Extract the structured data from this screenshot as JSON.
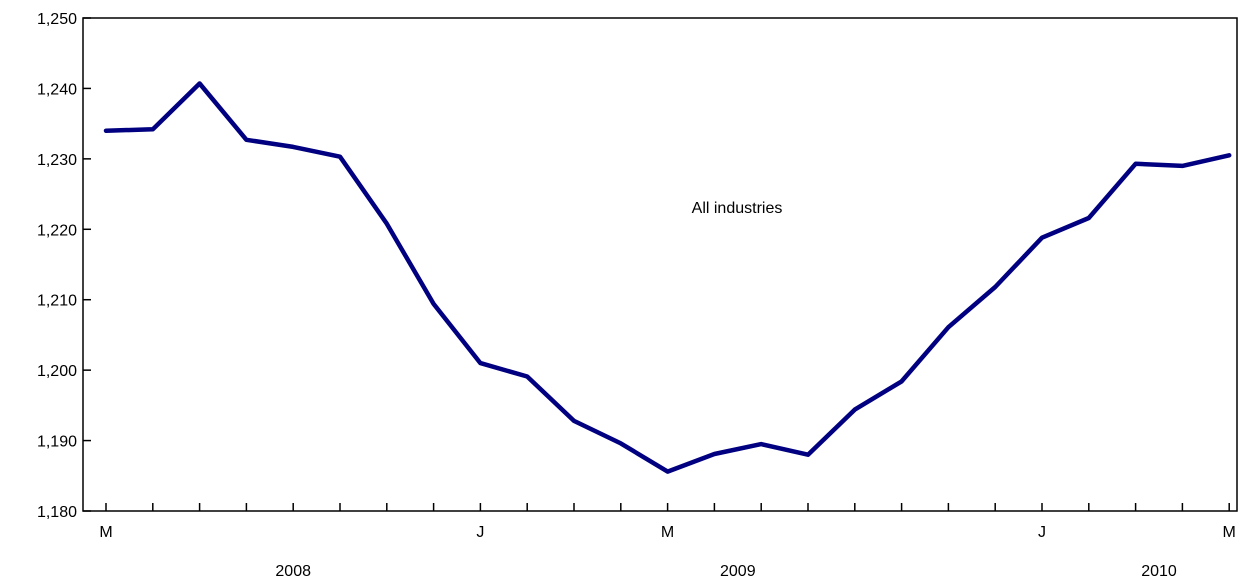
{
  "chart_data": {
    "type": "line",
    "x": [
      "2008-05",
      "2008-06",
      "2008-07",
      "2008-08",
      "2008-09",
      "2008-10",
      "2008-11",
      "2008-12",
      "2009-01",
      "2009-02",
      "2009-03",
      "2009-04",
      "2009-05",
      "2009-06",
      "2009-07",
      "2009-08",
      "2009-09",
      "2009-10",
      "2009-11",
      "2009-12",
      "2010-01",
      "2010-02",
      "2010-03",
      "2010-04",
      "2010-05"
    ],
    "series": [
      {
        "values": [
          1234.0,
          1234.2,
          1240.7,
          1232.7,
          1231.7,
          1230.3,
          1220.8,
          1209.4,
          1201.0,
          1199.1,
          1192.8,
          1189.6,
          1185.6,
          1188.1,
          1189.5,
          1188.0,
          1194.4,
          1198.4,
          1206.1,
          1211.8,
          1218.8,
          1221.6,
          1229.3,
          1229.0,
          1230.5
        ],
        "color": "#000080"
      }
    ],
    "ylim": [
      1180,
      1250
    ],
    "y_ticks": [
      "1,180",
      "1,190",
      "1,200",
      "1,210",
      "1,220",
      "1,230",
      "1,240",
      "1,250"
    ],
    "x_month_labels": [
      {
        "index": 0,
        "label": "M"
      },
      {
        "index": 8,
        "label": "J"
      },
      {
        "index": 12,
        "label": "M"
      },
      {
        "index": 20,
        "label": "J"
      },
      {
        "index": 24,
        "label": "M"
      }
    ],
    "x_year_labels": [
      {
        "center_index": 4,
        "label": "2008"
      },
      {
        "center_index": 13.5,
        "label": "2009"
      },
      {
        "center_index": 22.5,
        "label": "2010"
      }
    ],
    "annotation": "All industries",
    "grid": false,
    "legend": "none"
  }
}
